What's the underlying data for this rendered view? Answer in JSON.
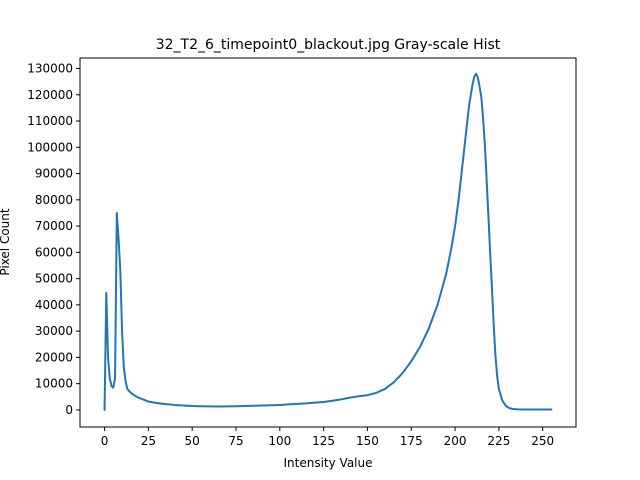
{
  "chart_data": {
    "type": "line",
    "title": "32_T2_6_timepoint0_blackout.jpg Gray-scale Hist",
    "xlabel": "Intensity Value",
    "ylabel": "Pixel Count",
    "xlim": [
      -14,
      269
    ],
    "ylim": [
      -6500,
      134000
    ],
    "xticks": [
      0,
      25,
      50,
      75,
      100,
      125,
      150,
      175,
      200,
      225,
      250
    ],
    "yticks": [
      0,
      10000,
      20000,
      30000,
      40000,
      50000,
      60000,
      70000,
      80000,
      90000,
      100000,
      110000,
      120000,
      130000
    ],
    "grid": false,
    "legend": "none",
    "series": [
      {
        "color": "#1f77b4",
        "points": [
          [
            0,
            0
          ],
          [
            1,
            44500
          ],
          [
            2,
            20000
          ],
          [
            3,
            12000
          ],
          [
            4,
            9000
          ],
          [
            5,
            8500
          ],
          [
            6,
            12000
          ],
          [
            7,
            75000
          ],
          [
            8,
            65000
          ],
          [
            9,
            53000
          ],
          [
            10,
            30000
          ],
          [
            11,
            16000
          ],
          [
            12,
            11000
          ],
          [
            13,
            8000
          ],
          [
            15,
            6500
          ],
          [
            17,
            5500
          ],
          [
            20,
            4500
          ],
          [
            22,
            4000
          ],
          [
            25,
            3200
          ],
          [
            30,
            2600
          ],
          [
            35,
            2200
          ],
          [
            40,
            1900
          ],
          [
            45,
            1700
          ],
          [
            50,
            1500
          ],
          [
            55,
            1400
          ],
          [
            60,
            1350
          ],
          [
            65,
            1300
          ],
          [
            70,
            1350
          ],
          [
            75,
            1400
          ],
          [
            80,
            1500
          ],
          [
            85,
            1600
          ],
          [
            90,
            1700
          ],
          [
            95,
            1800
          ],
          [
            100,
            1900
          ],
          [
            105,
            2100
          ],
          [
            110,
            2300
          ],
          [
            115,
            2500
          ],
          [
            120,
            2800
          ],
          [
            125,
            3000
          ],
          [
            130,
            3500
          ],
          [
            135,
            4000
          ],
          [
            140,
            4700
          ],
          [
            145,
            5200
          ],
          [
            150,
            5600
          ],
          [
            155,
            6500
          ],
          [
            160,
            8000
          ],
          [
            165,
            10500
          ],
          [
            170,
            14000
          ],
          [
            175,
            18500
          ],
          [
            180,
            24000
          ],
          [
            185,
            31000
          ],
          [
            190,
            40000
          ],
          [
            195,
            52000
          ],
          [
            198,
            62000
          ],
          [
            200,
            70000
          ],
          [
            202,
            80000
          ],
          [
            204,
            92000
          ],
          [
            206,
            104000
          ],
          [
            208,
            116000
          ],
          [
            210,
            124000
          ],
          [
            211,
            127000
          ],
          [
            212,
            128000
          ],
          [
            213,
            126500
          ],
          [
            214,
            123000
          ],
          [
            215,
            119000
          ],
          [
            216,
            111000
          ],
          [
            217,
            101000
          ],
          [
            218,
            88000
          ],
          [
            219,
            74000
          ],
          [
            220,
            60000
          ],
          [
            221,
            47000
          ],
          [
            222,
            33000
          ],
          [
            223,
            21000
          ],
          [
            224,
            13000
          ],
          [
            225,
            8000
          ],
          [
            227,
            3500
          ],
          [
            229,
            1500
          ],
          [
            231,
            700
          ],
          [
            233,
            350
          ],
          [
            236,
            200
          ],
          [
            240,
            150
          ],
          [
            245,
            150
          ],
          [
            250,
            150
          ],
          [
            255,
            150
          ]
        ]
      }
    ]
  }
}
